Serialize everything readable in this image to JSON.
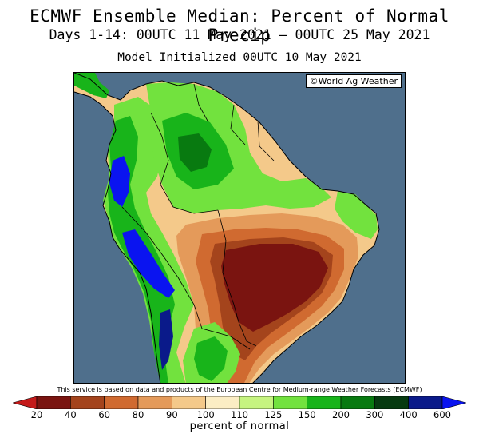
{
  "header": {
    "title": "ECMWF Ensemble Median: Percent of Normal Precip",
    "date_range": "Days 1-14: 00UTC 11 May 2021 — 00UTC 25 May 2021",
    "initialized": "Model Initialized 00UTC 10 May 2021"
  },
  "map": {
    "credit": "©World Ag Weather",
    "ocean_color": "#4f6f8c"
  },
  "footer": {
    "source": "This service is based on data and products of the European Centre for Medium-range Weather Forecasts (ECMWF)"
  },
  "legend": {
    "title": "percent of normal",
    "tick_labels": [
      "20",
      "40",
      "60",
      "80",
      "90",
      "100",
      "110",
      "125",
      "150",
      "200",
      "300",
      "400",
      "600"
    ],
    "colors": [
      "#c41a1a",
      "#7a1410",
      "#a4441c",
      "#d06a30",
      "#e49a5a",
      "#f4c98a",
      "#fbedc4",
      "#c6f480",
      "#72e23e",
      "#18b41a",
      "#087a10",
      "#063a10",
      "#0a1a8a",
      "#0a14f0"
    ]
  }
}
